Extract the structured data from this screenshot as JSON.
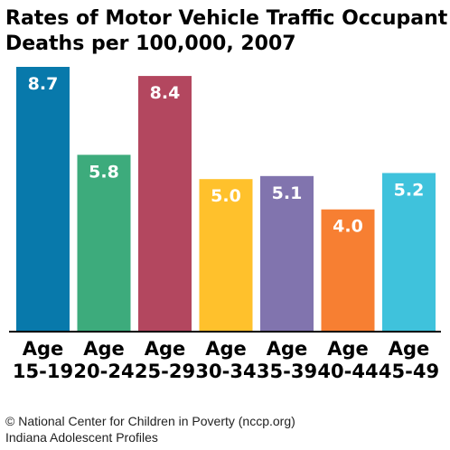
{
  "chart_data": {
    "type": "bar",
    "title": [
      "Rates of Motor Vehicle Traffic Occupant",
      "Deaths per 100,000, 2007"
    ],
    "categories": [
      [
        "Age",
        "15-19"
      ],
      [
        "Age",
        "20-24"
      ],
      [
        "Age",
        "25-29"
      ],
      [
        "Age",
        "30-34"
      ],
      [
        "Age",
        "35-39"
      ],
      [
        "Age",
        "40-44"
      ],
      [
        "Age",
        "45-49"
      ]
    ],
    "values": [
      8.7,
      5.8,
      8.4,
      5.0,
      5.1,
      4.0,
      5.2
    ],
    "value_labels": [
      "8.7",
      "5.8",
      "8.4",
      "5.0",
      "5.1",
      "4.0",
      "5.2"
    ],
    "colors": [
      "#0879ab",
      "#3dab7c",
      "#b3475f",
      "#ffc12c",
      "#8174ae",
      "#f77f32",
      "#3fc2dc"
    ],
    "ylim": [
      0,
      8.7
    ],
    "grid": false,
    "legend": "none"
  },
  "footer": {
    "line1": "© National Center for Children in Poverty (nccp.org)",
    "line2": "Indiana Adolescent Profiles"
  }
}
